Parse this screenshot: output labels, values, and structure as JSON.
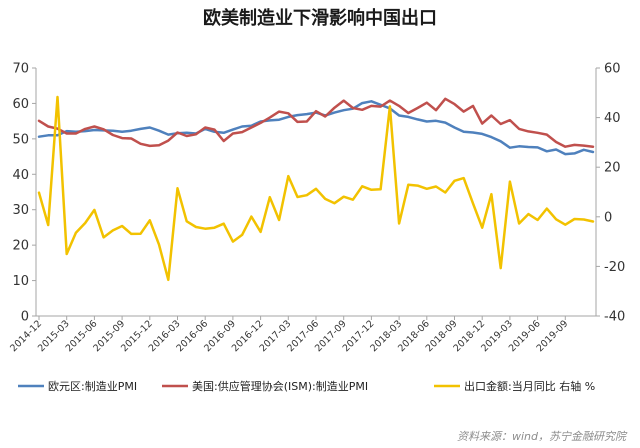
{
  "chart_data": {
    "type": "line",
    "title": "欧美制造业下滑影响中国出口",
    "x": [
      "2014-12",
      "2015-01",
      "2015-02",
      "2015-03",
      "2015-04",
      "2015-05",
      "2015-06",
      "2015-07",
      "2015-08",
      "2015-09",
      "2015-10",
      "2015-11",
      "2015-12",
      "2016-01",
      "2016-02",
      "2016-03",
      "2016-04",
      "2016-05",
      "2016-06",
      "2016-07",
      "2016-08",
      "2016-09",
      "2016-10",
      "2016-11",
      "2016-12",
      "2017-01",
      "2017-02",
      "2017-03",
      "2017-04",
      "2017-05",
      "2017-06",
      "2017-07",
      "2017-08",
      "2017-09",
      "2017-10",
      "2017-11",
      "2017-12",
      "2018-01",
      "2018-02",
      "2018-03",
      "2018-04",
      "2018-05",
      "2018-06",
      "2018-07",
      "2018-08",
      "2018-09",
      "2018-10",
      "2018-11",
      "2018-12",
      "2019-01",
      "2019-02",
      "2019-03",
      "2019-04",
      "2019-05",
      "2019-06",
      "2019-07",
      "2019-08",
      "2019-09",
      "2019-10",
      "2019-11",
      "2019-12"
    ],
    "x_tick_labels": [
      "2014-12",
      "2015-03",
      "2015-06",
      "2015-09",
      "2015-12",
      "2016-03",
      "2016-06",
      "2016-09",
      "2016-12",
      "2017-03",
      "2017-06",
      "2017-09",
      "2017-12",
      "2018-03",
      "2018-06",
      "2018-09",
      "2018-12",
      "2019-03",
      "2019-06",
      "2019-09"
    ],
    "y_left": {
      "ylim": [
        0,
        70
      ],
      "ticks": [
        "0",
        "10",
        "20",
        "30",
        "40",
        "50",
        "60",
        "70"
      ]
    },
    "y_right": {
      "ylim": [
        -40,
        60
      ],
      "ticks": [
        "-40",
        "-20",
        "0",
        "20",
        "40",
        "60"
      ]
    },
    "grid": false,
    "legend_position": "bottom",
    "series": [
      {
        "name": "欧元区:制造业PMI",
        "axis": "left",
        "color": "#4f81bd",
        "values": [
          50.6,
          51.0,
          51.0,
          52.2,
          52.0,
          52.2,
          52.5,
          52.4,
          52.3,
          52.0,
          52.3,
          52.8,
          53.2,
          52.3,
          51.2,
          51.6,
          51.7,
          51.5,
          52.8,
          52.0,
          51.7,
          52.6,
          53.5,
          53.7,
          54.9,
          55.2,
          55.4,
          56.2,
          56.7,
          57.0,
          57.4,
          56.6,
          57.4,
          58.1,
          58.5,
          60.1,
          60.6,
          59.6,
          58.6,
          56.6,
          56.2,
          55.5,
          54.9,
          55.1,
          54.6,
          53.2,
          52.0,
          51.8,
          51.4,
          50.5,
          49.3,
          47.5,
          47.9,
          47.7,
          47.6,
          46.5,
          47.0,
          45.7,
          45.9,
          46.9,
          46.3
        ]
      },
      {
        "name": "美国:供应管理协会(ISM):制造业PMI",
        "axis": "left",
        "color": "#c0504d",
        "values": [
          55.1,
          53.5,
          52.9,
          51.5,
          51.5,
          52.8,
          53.5,
          52.7,
          51.1,
          50.2,
          50.1,
          48.6,
          48.0,
          48.2,
          49.5,
          51.8,
          50.8,
          51.3,
          53.2,
          52.6,
          49.4,
          51.5,
          51.9,
          53.2,
          54.5,
          56.0,
          57.7,
          57.2,
          54.8,
          54.9,
          57.8,
          56.3,
          58.8,
          60.8,
          58.7,
          58.2,
          59.3,
          59.1,
          60.8,
          59.3,
          57.3,
          58.7,
          60.2,
          58.1,
          61.3,
          59.8,
          57.7,
          59.3,
          54.3,
          56.6,
          54.2,
          55.3,
          52.8,
          52.1,
          51.7,
          51.2,
          49.1,
          47.8,
          48.3,
          48.1,
          47.8
        ]
      },
      {
        "name": "出口金额:当月同比 右轴 %",
        "axis": "right",
        "color": "#f2c200",
        "values": [
          9.7,
          -3.3,
          48.3,
          -15.0,
          -6.4,
          -2.5,
          2.8,
          -8.3,
          -5.5,
          -3.7,
          -6.9,
          -6.8,
          -1.4,
          -11.2,
          -25.4,
          11.5,
          -1.8,
          -4.1,
          -4.8,
          -4.4,
          -2.8,
          -10.0,
          -7.3,
          0.1,
          -6.1,
          7.9,
          -1.3,
          16.4,
          8.0,
          8.7,
          11.3,
          7.2,
          5.5,
          8.1,
          6.9,
          12.3,
          10.9,
          11.1,
          44.5,
          -2.7,
          12.9,
          12.6,
          11.3,
          12.2,
          9.8,
          14.5,
          15.6,
          5.4,
          -4.4,
          9.1,
          -20.7,
          14.2,
          -2.7,
          1.1,
          -1.3,
          3.3,
          -1.0,
          -3.2,
          -0.9,
          -1.1,
          -1.9
        ]
      }
    ]
  },
  "source": "资料来源：wind，苏宁金融研究院"
}
